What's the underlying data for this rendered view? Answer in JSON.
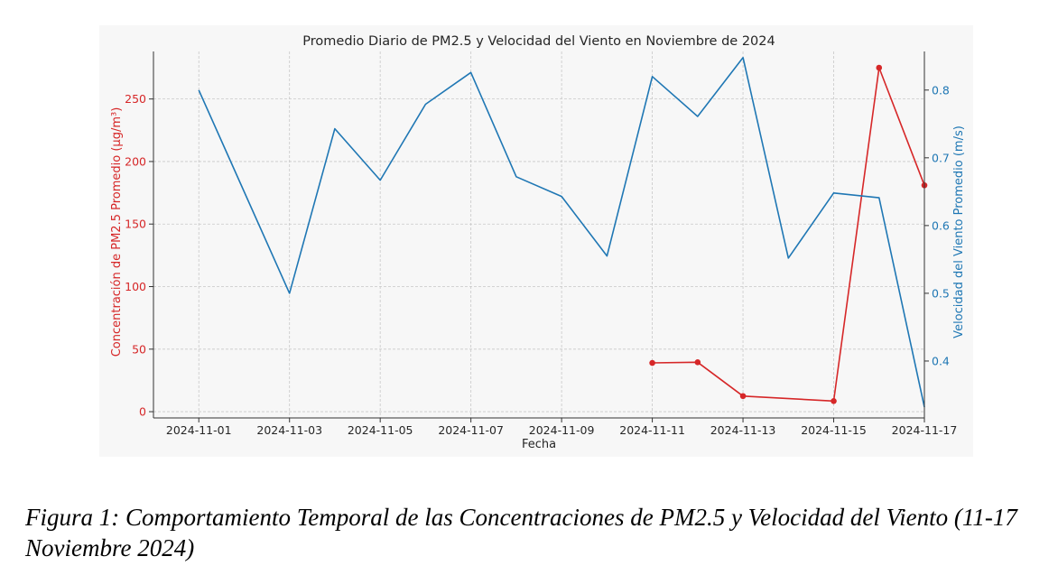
{
  "chart_data": {
    "type": "line",
    "title": "Promedio Diario de PM2.5 y Velocidad del Viento en Noviembre de 2024",
    "xlabel": "Fecha",
    "ylabel_left": "Concentración de PM2.5 Promedio (µg/m³)",
    "ylabel_right": "Velocidad del Viento Promedio (m/s)",
    "x_tick_labels": [
      "2024-11-01",
      "2024-11-03",
      "2024-11-05",
      "2024-11-07",
      "2024-11-09",
      "2024-11-11",
      "2024-11-13",
      "2024-11-15",
      "2024-11-17"
    ],
    "y_left_ticks": [
      0,
      50,
      100,
      150,
      200,
      250
    ],
    "y_right_ticks": [
      0.4,
      0.5,
      0.6,
      0.7,
      0.8
    ],
    "ylim_left": [
      -5,
      288
    ],
    "ylim_right": [
      0.316,
      0.857
    ],
    "xlim": [
      "2024-10-31",
      "2024-11-17"
    ],
    "grid": true,
    "colors": {
      "pm25": "#d62728",
      "wind": "#1f77b4"
    },
    "series": [
      {
        "axis": "left",
        "color": "#d62728",
        "marker": "circle",
        "x": [
          "2024-11-11",
          "2024-11-12",
          "2024-11-13",
          "2024-11-15",
          "2024-11-16",
          "2024-11-17"
        ],
        "values": [
          39,
          39.5,
          12.5,
          8.5,
          275,
          181
        ]
      },
      {
        "axis": "right",
        "color": "#1f77b4",
        "marker": "none",
        "x": [
          "2024-11-01",
          "2024-11-03",
          "2024-11-04",
          "2024-11-05",
          "2024-11-06",
          "2024-11-07",
          "2024-11-08",
          "2024-11-09",
          "2024-11-10",
          "2024-11-11",
          "2024-11-12",
          "2024-11-13",
          "2024-11-14",
          "2024-11-15",
          "2024-11-16",
          "2024-11-17"
        ],
        "values": [
          0.8,
          0.5,
          0.743,
          0.667,
          0.779,
          0.826,
          0.672,
          0.643,
          0.555,
          0.82,
          0.761,
          0.848,
          0.552,
          0.648,
          0.641,
          0.332
        ]
      }
    ]
  },
  "caption": "Figura 1: Comportamiento Temporal de las Concentraciones de PM2.5 y Velocidad del Viento (11-17 Noviembre 2024)"
}
